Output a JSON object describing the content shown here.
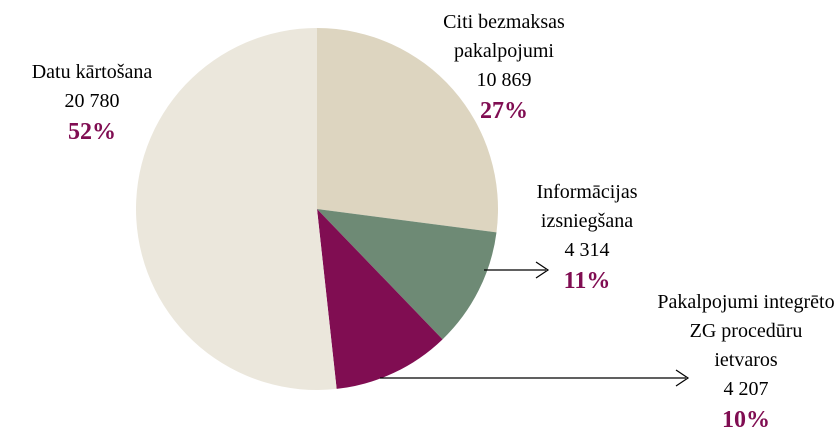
{
  "chart_data": {
    "type": "pie",
    "categories": [
      "Citi bezmaksas pakalpojumi",
      "Informācijas izsniegšana",
      "Pakalpojumi integrēto ZG procedūru ietvaros",
      "Datu kārtošana"
    ],
    "values": [
      10869,
      4314,
      4207,
      20780
    ],
    "value_labels": [
      "10 869",
      "4 314",
      "4 207",
      "20 780"
    ],
    "percent_labels": [
      "27%",
      "11%",
      "10%",
      "52%"
    ],
    "colors": [
      "#ddd5c0",
      "#6e8a75",
      "#800d52",
      "#ebe7dc"
    ]
  }
}
